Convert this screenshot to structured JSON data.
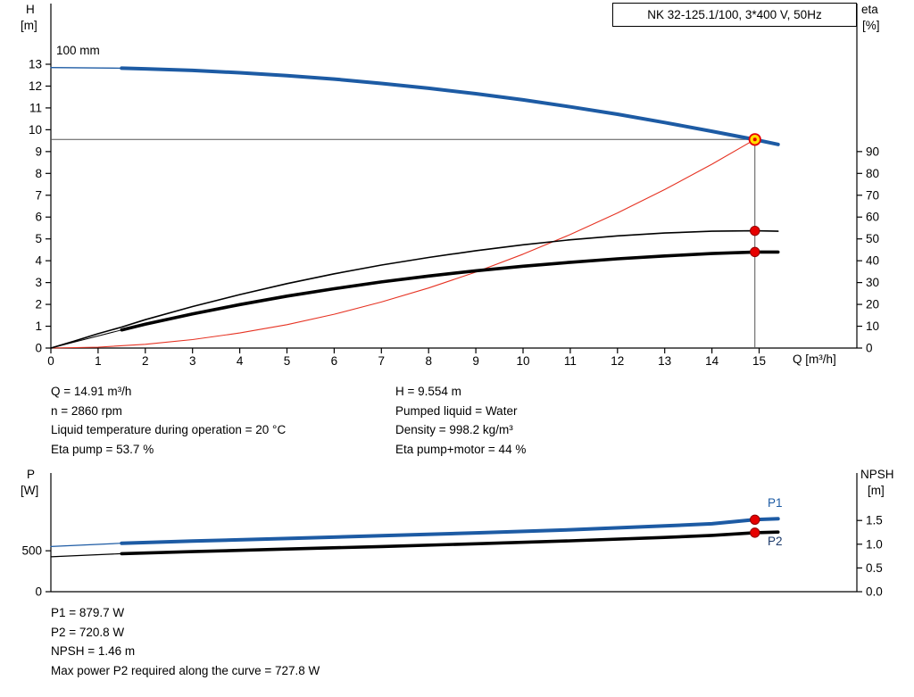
{
  "colors": {
    "background": "#ffffff",
    "axis": "#000000",
    "curve_blue": "#1d5ba4",
    "curve_black": "#000000",
    "system_red": "#e63323",
    "marker_red": "#e60000",
    "marker_red_dark": "#8f0000",
    "op_yellow": "#ffdd00",
    "ref_line": "#555555",
    "p1_label_color": "#1d5ba4",
    "p2_label_color": "#1b3a6b"
  },
  "header": {
    "title": "NK 32-125.1/100, 3*400 V, 50Hz"
  },
  "info_top": {
    "left": [
      "Q = 14.91 m³/h",
      "n = 2860 rpm",
      "Liquid temperature during operation = 20 °C",
      "Eta pump = 53.7 %"
    ],
    "right": [
      "H = 9.554 m",
      "Pumped liquid = Water",
      "Density = 998.2 kg/m³",
      "Eta pump+motor = 44 %"
    ]
  },
  "info_bottom": [
    "P1 = 879.7 W",
    "P2 = 720.8 W",
    "NPSH = 1.46 m",
    "Max power P2 required along the curve = 727.8 W"
  ],
  "chart_data": [
    {
      "type": "line",
      "title": "NK 32-125.1/100, 3*400 V, 50Hz",
      "curve_label": "100 mm",
      "axes": {
        "x": {
          "label": "Q [m³/h]",
          "range": [
            0,
            17.07
          ],
          "ticks": [
            0,
            1,
            2,
            3,
            4,
            5,
            6,
            7,
            8,
            9,
            10,
            11,
            12,
            13,
            14,
            15
          ]
        },
        "y_left": {
          "symbol": "H",
          "unit": "[m]",
          "range": [
            0,
            15.78
          ],
          "ticks": [
            0,
            1,
            2,
            3,
            4,
            5,
            6,
            7,
            8,
            9,
            10,
            11,
            12,
            13
          ]
        },
        "y_right": {
          "symbol": "eta",
          "unit": "[%]",
          "range": [
            0,
            157.8
          ],
          "ticks": [
            0,
            10,
            20,
            30,
            40,
            50,
            60,
            70,
            80,
            90
          ]
        }
      },
      "series": [
        {
          "name": "system-curve",
          "axis": "h",
          "color_key": "system_red",
          "width": 1.1,
          "points": [
            [
              0,
              0
            ],
            [
              1,
              0.04
            ],
            [
              2,
              0.17
            ],
            [
              3,
              0.39
            ],
            [
              4,
              0.69
            ],
            [
              5,
              1.07
            ],
            [
              6,
              1.55
            ],
            [
              7,
              2.11
            ],
            [
              8,
              2.75
            ],
            [
              9,
              3.48
            ],
            [
              10,
              4.3
            ],
            [
              11,
              5.2
            ],
            [
              12,
              6.19
            ],
            [
              13,
              7.26
            ],
            [
              14,
              8.42
            ],
            [
              14.91,
              9.554
            ]
          ]
        },
        {
          "name": "eta-pump-curve",
          "axis": "eta",
          "color_key": "curve_black",
          "width": 1.6,
          "points": [
            [
              0,
              0
            ],
            [
              0.5,
              3.2
            ],
            [
              1,
              6.6
            ],
            [
              1.5,
              9.6
            ],
            [
              2,
              13
            ],
            [
              3,
              19
            ],
            [
              4,
              24.5
            ],
            [
              5,
              29.5
            ],
            [
              6,
              34
            ],
            [
              7,
              38
            ],
            [
              8,
              41.5
            ],
            [
              9,
              44.6
            ],
            [
              10,
              47.3
            ],
            [
              11,
              49.6
            ],
            [
              12,
              51.4
            ],
            [
              13,
              52.7
            ],
            [
              14,
              53.5
            ],
            [
              14.91,
              53.7
            ],
            [
              15.4,
              53.5
            ]
          ]
        },
        {
          "name": "eta-pump-motor-lead",
          "axis": "eta",
          "color_key": "curve_black",
          "width": 1,
          "points": [
            [
              0,
              0
            ],
            [
              1.5,
              8.3
            ]
          ]
        },
        {
          "name": "eta-pump-motor-curve",
          "axis": "eta",
          "color_key": "curve_black",
          "width": 3.6,
          "points": [
            [
              1.5,
              8.3
            ],
            [
              2,
              10.9
            ],
            [
              3,
              15.6
            ],
            [
              4,
              19.9
            ],
            [
              5,
              23.8
            ],
            [
              6,
              27.2
            ],
            [
              7,
              30.3
            ],
            [
              8,
              33
            ],
            [
              9,
              35.4
            ],
            [
              10,
              37.5
            ],
            [
              11,
              39.3
            ],
            [
              12,
              40.9
            ],
            [
              13,
              42.2
            ],
            [
              14,
              43.3
            ],
            [
              14.91,
              44
            ],
            [
              15.4,
              44
            ]
          ]
        },
        {
          "name": "pump-curve-lead",
          "axis": "h",
          "color_key": "curve_blue",
          "width": 1.3,
          "points": [
            [
              0,
              12.85
            ],
            [
              1.5,
              12.82
            ]
          ]
        },
        {
          "name": "pump-curve-100mm",
          "axis": "h",
          "color_key": "curve_blue",
          "width": 4,
          "points": [
            [
              1.5,
              12.82
            ],
            [
              2,
              12.79
            ],
            [
              3,
              12.72
            ],
            [
              4,
              12.61
            ],
            [
              5,
              12.48
            ],
            [
              6,
              12.32
            ],
            [
              7,
              12.12
            ],
            [
              8,
              11.9
            ],
            [
              9,
              11.65
            ],
            [
              10,
              11.37
            ],
            [
              11,
              11.05
            ],
            [
              12,
              10.71
            ],
            [
              13,
              10.33
            ],
            [
              14,
              9.93
            ],
            [
              14.91,
              9.55
            ],
            [
              15.4,
              9.33
            ]
          ]
        }
      ],
      "operating_point": {
        "q": 14.91,
        "h": 9.554
      },
      "eta_markers": [
        {
          "q": 14.91,
          "eta": 53.7
        },
        {
          "q": 14.91,
          "eta": 44
        }
      ]
    },
    {
      "type": "line",
      "title": "Power and NPSH curves",
      "axes": {
        "x": {
          "label": "",
          "range": [
            0,
            17.07
          ],
          "ticks": []
        },
        "y_left": {
          "symbol": "P",
          "unit": "[W]",
          "range": [
            0,
            1450
          ],
          "ticks": [
            0,
            500
          ],
          "tick_labels": [
            "0",
            "500"
          ]
        },
        "y_right": {
          "symbol": "NPSH",
          "unit": "[m]",
          "range": [
            0,
            2.5
          ],
          "ticks": [
            0,
            0.5,
            1,
            1.5
          ],
          "tick_labels": [
            "0.0",
            "0.5",
            "1.0",
            "1.5"
          ]
        }
      },
      "series": [
        {
          "name": "p1-lead",
          "axis": "p",
          "color_key": "curve_blue",
          "width": 1.2,
          "points": [
            [
              0,
              552
            ],
            [
              1.5,
              592
            ]
          ]
        },
        {
          "name": "p1-curve",
          "axis": "p",
          "color_key": "curve_blue",
          "width": 4,
          "points": [
            [
              1.5,
              592
            ],
            [
              3,
              618
            ],
            [
              5,
              650
            ],
            [
              7,
              684
            ],
            [
              9,
              719
            ],
            [
              11,
              757
            ],
            [
              13,
              803
            ],
            [
              14,
              830
            ],
            [
              14.91,
              879.7
            ],
            [
              15.4,
              891
            ]
          ]
        },
        {
          "name": "p2-lead",
          "axis": "p",
          "color_key": "curve_black",
          "width": 1.2,
          "points": [
            [
              0,
              426
            ],
            [
              1.5,
              464
            ]
          ]
        },
        {
          "name": "p2-curve",
          "axis": "p",
          "color_key": "curve_black",
          "width": 3.6,
          "points": [
            [
              1.5,
              464
            ],
            [
              3,
              490
            ],
            [
              5,
              521
            ],
            [
              7,
              552
            ],
            [
              9,
              585
            ],
            [
              11,
              621
            ],
            [
              13,
              663
            ],
            [
              14,
              688
            ],
            [
              14.91,
              720.8
            ],
            [
              15.4,
              727.8
            ]
          ]
        }
      ],
      "power_markers": [
        {
          "q": 14.91,
          "p": 879.7,
          "label": "P1"
        },
        {
          "q": 14.91,
          "p": 720.8,
          "label": "P2"
        }
      ],
      "curve_labels": {
        "p1": "P1",
        "p2": "P2"
      }
    }
  ]
}
